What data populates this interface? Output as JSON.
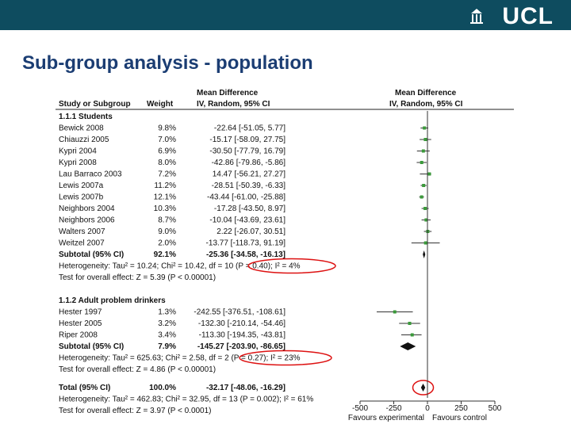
{
  "slide": {
    "title": "Sub-group analysis - population",
    "logo": "UCL"
  },
  "header": {
    "study": "Study or Subgroup",
    "weight": "Weight",
    "md_top": "Mean Difference",
    "md_sub": "IV, Random, 95% CI",
    "plot_top": "Mean Difference",
    "plot_sub": "IV, Random, 95% CI"
  },
  "colors": {
    "topbar": "#0e4c5f",
    "title": "#1b3d73",
    "study_marker": "#3a9a3a",
    "highlight": "#dd1111"
  },
  "chart_data": {
    "type": "forest",
    "x_axis": {
      "min": -500,
      "max": 500,
      "ticks": [
        "-500",
        "-250",
        "0",
        "250",
        "500"
      ]
    },
    "favours_left": "Favours experimental",
    "favours_right": "Favours control",
    "groups": [
      {
        "title": "1.1.1 Students",
        "studies": [
          {
            "name": "Bewick 2008",
            "weight": "9.8%",
            "ci_text": "-22.64 [-51.05, 5.77]",
            "md": -22.64,
            "low": -51.05,
            "high": 5.77
          },
          {
            "name": "Chiauzzi 2005",
            "weight": "7.0%",
            "ci_text": "-15.17 [-58.09, 27.75]",
            "md": -15.17,
            "low": -58.09,
            "high": 27.75
          },
          {
            "name": "Kypri 2004",
            "weight": "6.9%",
            "ci_text": "-30.50 [-77.79, 16.79]",
            "md": -30.5,
            "low": -77.79,
            "high": 16.79
          },
          {
            "name": "Kypri 2008",
            "weight": "8.0%",
            "ci_text": "-42.86 [-79.86, -5.86]",
            "md": -42.86,
            "low": -79.86,
            "high": -5.86
          },
          {
            "name": "Lau Barraco 2003",
            "weight": "7.2%",
            "ci_text": "14.47 [-56.21, 27.27]",
            "md": 14.47,
            "low": -56.21,
            "high": 27.27
          },
          {
            "name": "Lewis 2007a",
            "weight": "11.2%",
            "ci_text": "-28.51 [-50.39, -6.33]",
            "md": -28.51,
            "low": -50.39,
            "high": -6.33
          },
          {
            "name": "Lewis 2007b",
            "weight": "12.1%",
            "ci_text": "-43.44 [-61.00, -25.88]",
            "md": -43.44,
            "low": -61.0,
            "high": -25.88
          },
          {
            "name": "Neighbors 2004",
            "weight": "10.3%",
            "ci_text": "-17.28 [-43.50, 8.97]",
            "md": -17.28,
            "low": -43.5,
            "high": 8.97
          },
          {
            "name": "Neighbors 2006",
            "weight": "8.7%",
            "ci_text": "-10.04 [-43.69, 23.61]",
            "md": -10.04,
            "low": -43.69,
            "high": 23.61
          },
          {
            "name": "Walters 2007",
            "weight": "9.0%",
            "ci_text": "2.22 [-26.07, 30.51]",
            "md": 2.22,
            "low": -26.07,
            "high": 30.51
          },
          {
            "name": "Weitzel 2007",
            "weight": "2.0%",
            "ci_text": "-13.77 [-118.73, 91.19]",
            "md": -13.77,
            "low": -118.73,
            "high": 91.19
          }
        ],
        "subtotal": {
          "label": "Subtotal (95% CI)",
          "weight": "92.1%",
          "ci_text": "-25.36 [-34.58, -16.13]",
          "md": -25.36,
          "low": -34.58,
          "high": -16.13
        },
        "heterogeneity": "Heterogeneity: Tau² = 10.24; Chi² = 10.42, df = 10 (P = 0.40); I² = 4%",
        "overall_test": "Test for overall effect: Z = 5.39 (P < 0.00001)"
      },
      {
        "title": "1.1.2 Adult problem drinkers",
        "studies": [
          {
            "name": "Hester 1997",
            "weight": "1.3%",
            "ci_text": "-242.55 [-376.51, -108.61]",
            "md": -242.55,
            "low": -376.51,
            "high": -108.61
          },
          {
            "name": "Hester 2005",
            "weight": "3.2%",
            "ci_text": "-132.30 [-210.14, -54.46]",
            "md": -132.3,
            "low": -210.14,
            "high": -54.46
          },
          {
            "name": "Riper 2008",
            "weight": "3.4%",
            "ci_text": "-113.30 [-194.35, -43.81]",
            "md": -113.3,
            "low": -194.35,
            "high": -43.81
          }
        ],
        "subtotal": {
          "label": "Subtotal (95% CI)",
          "weight": "7.9%",
          "ci_text": "-145.27 [-203.90, -86.65]",
          "md": -145.27,
          "low": -203.9,
          "high": -86.65
        },
        "heterogeneity": "Heterogeneity: Tau² = 625.63; Chi² = 2.58, df = 2 (P = 0.27); I² = 23%",
        "overall_test": "Test for overall effect: Z = 4.86 (P < 0.00001)"
      }
    ],
    "total": {
      "label": "Total (95% CI)",
      "weight": "100.0%",
      "ci_text": "-32.17 [-48.06, -16.29]",
      "md": -32.17,
      "low": -48.06,
      "high": -16.29
    },
    "total_heterogeneity": "Heterogeneity: Tau² = 462.83; Chi² = 32.95, df = 13 (P = 0.002); I² = 61%",
    "total_test": "Test for overall effect: Z = 3.97 (P < 0.0001)"
  }
}
